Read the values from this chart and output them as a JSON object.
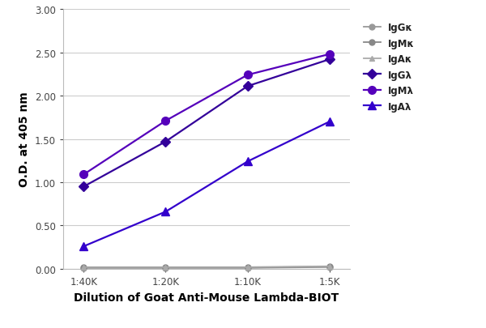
{
  "x_labels": [
    "1:40K",
    "1:20K",
    "1:10K",
    "1:5K"
  ],
  "x_positions": [
    0,
    1,
    2,
    3
  ],
  "series": [
    {
      "label": "IgGκ",
      "values": [
        0.01,
        0.01,
        0.01,
        0.02
      ],
      "color": "#999999",
      "marker": "o",
      "markersize": 5,
      "linewidth": 1.3,
      "linestyle": "-"
    },
    {
      "label": "IgMκ",
      "values": [
        0.015,
        0.015,
        0.015,
        0.025
      ],
      "color": "#888888",
      "marker": "o",
      "markersize": 5,
      "linewidth": 1.3,
      "linestyle": "-"
    },
    {
      "label": "IgAκ",
      "values": [
        0.02,
        0.02,
        0.02,
        0.03
      ],
      "color": "#aaaaaa",
      "marker": "^",
      "markersize": 5,
      "linewidth": 1.3,
      "linestyle": "-"
    },
    {
      "label": "IgGλ",
      "values": [
        0.95,
        1.47,
        2.11,
        2.42
      ],
      "color": "#33009a",
      "marker": "D",
      "markersize": 6,
      "linewidth": 1.6,
      "linestyle": "-"
    },
    {
      "label": "IgMλ",
      "values": [
        1.09,
        1.71,
        2.24,
        2.48
      ],
      "color": "#5500bb",
      "marker": "o",
      "markersize": 7,
      "linewidth": 1.6,
      "linestyle": "-"
    },
    {
      "label": "IgAλ",
      "values": [
        0.26,
        0.66,
        1.24,
        1.7
      ],
      "color": "#3300cc",
      "marker": "^",
      "markersize": 7,
      "linewidth": 1.6,
      "linestyle": "-"
    }
  ],
  "ylabel": "O.D. at 405 nm",
  "xlabel": "Dilution of Goat Anti-Mouse Lambda-BIOT",
  "ylim": [
    0.0,
    3.0
  ],
  "yticks": [
    0.0,
    0.5,
    1.0,
    1.5,
    2.0,
    2.5,
    3.0
  ],
  "legend_fontsize": 8.5,
  "axis_label_fontsize": 10,
  "tick_fontsize": 8.5,
  "background_color": "#ffffff",
  "grid_color": "#cccccc",
  "figsize": [
    6.0,
    4.06
  ],
  "dpi": 100
}
